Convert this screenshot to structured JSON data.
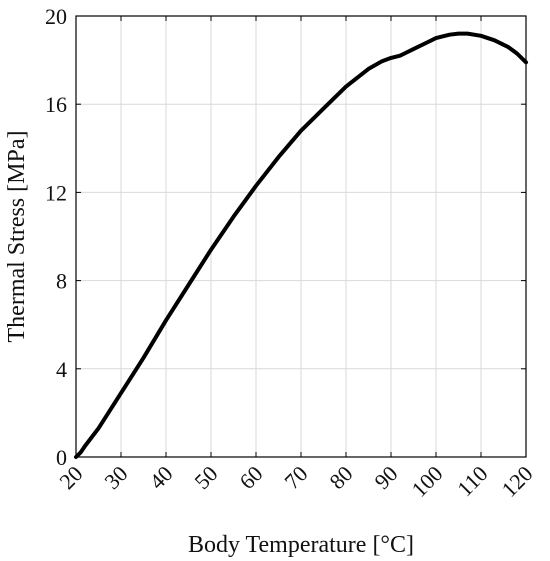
{
  "chart_data": {
    "type": "line",
    "title": "",
    "xlabel": "Body Temperature [°C]",
    "ylabel": "Thermal Stress [MPa]",
    "xlim": [
      20,
      120
    ],
    "ylim": [
      0,
      20
    ],
    "xticks": [
      20,
      30,
      40,
      50,
      60,
      70,
      80,
      90,
      100,
      110,
      120
    ],
    "yticks": [
      0,
      4,
      8,
      12,
      16,
      20
    ],
    "grid": true,
    "legend": "none",
    "series": [
      {
        "color": "#000000",
        "x": [
          20,
          21,
          22,
          25,
          30,
          35,
          40,
          45,
          50,
          55,
          60,
          65,
          70,
          75,
          80,
          85,
          88,
          90,
          92,
          93,
          95,
          98,
          100,
          103,
          105,
          107,
          110,
          113,
          116,
          118,
          120
        ],
        "y": [
          0,
          0.2,
          0.5,
          1.3,
          2.9,
          4.5,
          6.2,
          7.8,
          9.4,
          10.9,
          12.3,
          13.6,
          14.8,
          15.8,
          16.8,
          17.6,
          17.95,
          18.1,
          18.2,
          18.3,
          18.5,
          18.8,
          19.0,
          19.15,
          19.2,
          19.2,
          19.1,
          18.9,
          18.6,
          18.3,
          17.9
        ]
      }
    ]
  }
}
